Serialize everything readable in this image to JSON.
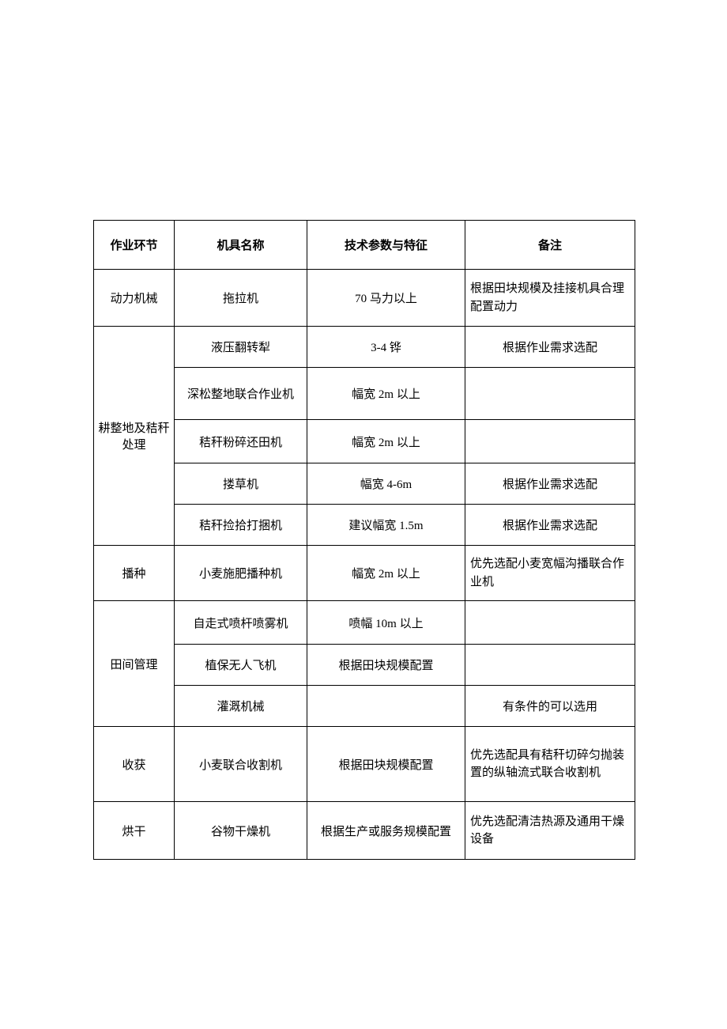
{
  "table": {
    "headers": {
      "col1": "作业环节",
      "col2": "机具名称",
      "col3": "技术参数与特征",
      "col4": "备注"
    },
    "rows": [
      {
        "stage": "动力机械",
        "machine": "拖拉机",
        "params": "70 马力以上",
        "note": "根据田块规模及挂接机具合理配置动力"
      },
      {
        "stage": "耕整地及秸秆处理",
        "machine": "液压翻转犁",
        "params": "3-4 铧",
        "note": "根据作业需求选配"
      },
      {
        "machine": "深松整地联合作业机",
        "params": "幅宽 2m 以上",
        "note": ""
      },
      {
        "machine": "秸秆粉碎还田机",
        "params": "幅宽 2m 以上",
        "note": ""
      },
      {
        "machine": "搂草机",
        "params": "幅宽 4-6m",
        "note": "根据作业需求选配"
      },
      {
        "machine": "秸秆捡拾打捆机",
        "params": "建议幅宽 1.5m",
        "note": "根据作业需求选配"
      },
      {
        "stage": "播种",
        "machine": "小麦施肥播种机",
        "params": "幅宽 2m 以上",
        "note": "优先选配小麦宽幅沟播联合作业机"
      },
      {
        "stage": "田间管理",
        "machine": "自走式喷杆喷雾机",
        "params": "喷幅 10m 以上",
        "note": ""
      },
      {
        "machine": "植保无人飞机",
        "params": "根据田块规模配置",
        "note": ""
      },
      {
        "machine": "灌溉机械",
        "params": "",
        "note": "有条件的可以选用"
      },
      {
        "stage": "收获",
        "machine": "小麦联合收割机",
        "params": "根据田块规模配置",
        "note": "优先选配具有秸秆切碎匀抛装置的纵轴流式联合收割机"
      },
      {
        "stage": "烘干",
        "machine": "谷物干燥机",
        "params": "根据生产或服务规模配置",
        "note": "优先选配清洁热源及通用干燥设备"
      }
    ]
  }
}
